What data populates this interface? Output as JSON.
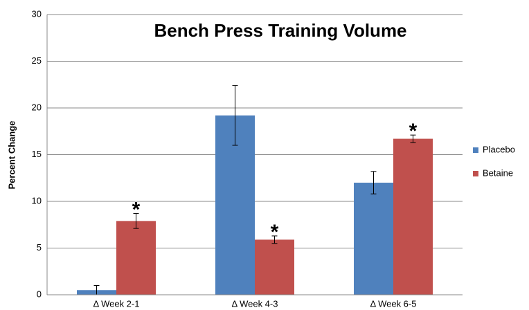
{
  "chart_data": {
    "type": "bar",
    "title": "Bench Press Training Volume",
    "y_label": "Percent Change",
    "categories": [
      "Δ Week 2-1",
      "Δ Week 4-3",
      "Δ Week 6-5"
    ],
    "series": [
      {
        "name": "Placebo",
        "color": "#4f81bd",
        "values": [
          0.5,
          19.2,
          12.0
        ],
        "errors": [
          0.5,
          3.2,
          1.2
        ]
      },
      {
        "name": "Betaine",
        "color": "#c0504d",
        "values": [
          7.9,
          5.9,
          16.7
        ],
        "errors": [
          0.8,
          0.4,
          0.4
        ],
        "annotations": [
          "*",
          "*",
          "*"
        ]
      }
    ],
    "ylim": [
      0,
      30
    ],
    "yticks": [
      0,
      5,
      10,
      15,
      20,
      25,
      30
    ],
    "grid": true,
    "legend": "right"
  }
}
